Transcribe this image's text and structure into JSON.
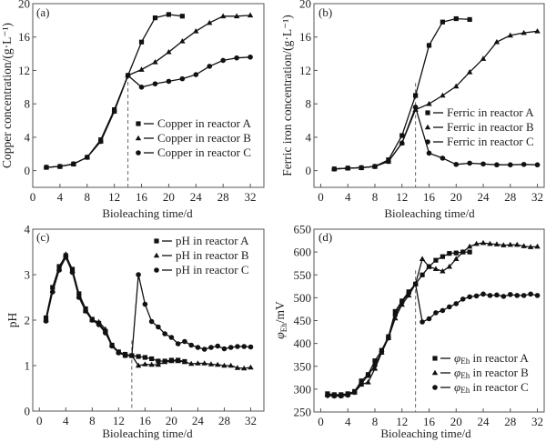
{
  "chart_data": [
    {
      "type": "line",
      "panel_label": "(a)",
      "xlabel": "Bioleaching time/d",
      "ylabel": "Copper concentration/(g·L⁻¹)",
      "xlim": [
        0,
        34
      ],
      "ylim": [
        -2,
        20
      ],
      "xticks": [
        0,
        4,
        8,
        12,
        16,
        20,
        24,
        28,
        32
      ],
      "yticks": [
        0,
        4,
        8,
        12,
        16,
        20
      ],
      "marker_line_x": 14,
      "legend_position": "lower-right",
      "series": [
        {
          "name": "Copper in reactor A",
          "marker": "square",
          "x": [
            2,
            4,
            6,
            8,
            10,
            12,
            14,
            16,
            18,
            20,
            22
          ],
          "y": [
            0.4,
            0.5,
            0.8,
            1.6,
            3.7,
            7.3,
            11.4,
            15.4,
            18.3,
            18.7,
            18.5
          ]
        },
        {
          "name": "Copper in reactor B",
          "marker": "triangle",
          "x": [
            2,
            4,
            6,
            8,
            10,
            12,
            14,
            16,
            18,
            20,
            22,
            24,
            26,
            28,
            30,
            32
          ],
          "y": [
            0.4,
            0.5,
            0.8,
            1.6,
            3.5,
            7.1,
            11.4,
            12.1,
            13.0,
            14.2,
            15.5,
            16.7,
            17.7,
            18.5,
            18.5,
            18.6
          ]
        },
        {
          "name": "Copper in reactor C",
          "marker": "circle",
          "x": [
            2,
            4,
            6,
            8,
            10,
            12,
            14,
            16,
            18,
            20,
            22,
            24,
            26,
            28,
            30,
            32
          ],
          "y": [
            0.4,
            0.5,
            0.8,
            1.6,
            3.5,
            7.1,
            11.4,
            10.0,
            10.4,
            10.7,
            11.0,
            11.5,
            12.5,
            13.2,
            13.5,
            13.6
          ]
        }
      ]
    },
    {
      "type": "line",
      "panel_label": "(b)",
      "xlabel": "Bioleaching time/d",
      "ylabel": "Ferric iron concentration/(g·L⁻¹)",
      "xlim": [
        -1,
        33
      ],
      "ylim": [
        -2,
        20
      ],
      "xticks": [
        0,
        4,
        8,
        12,
        16,
        20,
        24,
        28,
        32
      ],
      "yticks": [
        0,
        4,
        8,
        12,
        16,
        20
      ],
      "marker_line_x": 14,
      "legend_position": "right",
      "series": [
        {
          "name": "Ferric in reactor A",
          "marker": "square",
          "x": [
            2,
            4,
            6,
            8,
            10,
            12,
            14,
            16,
            18,
            20,
            22
          ],
          "y": [
            0.2,
            0.3,
            0.35,
            0.5,
            1.3,
            4.2,
            9.0,
            15.0,
            17.8,
            18.2,
            18.1
          ]
        },
        {
          "name": "Ferric in reactor B",
          "marker": "triangle",
          "x": [
            2,
            4,
            6,
            8,
            10,
            12,
            14,
            16,
            18,
            20,
            22,
            24,
            26,
            28,
            30,
            32
          ],
          "y": [
            0.2,
            0.3,
            0.35,
            0.5,
            1.1,
            3.3,
            7.3,
            8.0,
            9.0,
            10.1,
            11.8,
            13.4,
            15.4,
            16.2,
            16.5,
            16.7
          ]
        },
        {
          "name": "Ferric in reactor C",
          "marker": "circle",
          "x": [
            2,
            4,
            6,
            8,
            10,
            12,
            14,
            16,
            18,
            20,
            22,
            24,
            26,
            28,
            30,
            32
          ],
          "y": [
            0.2,
            0.3,
            0.35,
            0.5,
            1.1,
            3.3,
            7.6,
            2.1,
            1.5,
            0.75,
            0.9,
            0.8,
            0.7,
            0.7,
            0.75,
            0.7
          ]
        }
      ]
    },
    {
      "type": "line",
      "panel_label": "(c)",
      "xlabel": "Bioleaching time/d",
      "ylabel": "pH",
      "xlim": [
        -1,
        34
      ],
      "ylim": [
        0,
        4
      ],
      "xticks": [
        0,
        4,
        8,
        12,
        16,
        20,
        24,
        28,
        32
      ],
      "yticks": [
        0,
        1,
        2,
        3,
        4
      ],
      "marker_line_x": 14,
      "legend_position": "top-right",
      "series": [
        {
          "name": "pH in reactor A",
          "marker": "square",
          "x": [
            1,
            2,
            3,
            4,
            5,
            6,
            7,
            8,
            9,
            10,
            11,
            12,
            13,
            14,
            15,
            16,
            17,
            18,
            19,
            20,
            21,
            22
          ],
          "y": [
            2.05,
            2.72,
            3.18,
            3.42,
            3.12,
            2.58,
            2.25,
            2.02,
            1.93,
            1.75,
            1.45,
            1.3,
            1.25,
            1.22,
            1.2,
            1.18,
            1.15,
            1.1,
            1.1,
            1.12,
            1.12,
            1.09
          ]
        },
        {
          "name": "pH in reactor B",
          "marker": "triangle",
          "x": [
            1,
            2,
            3,
            4,
            5,
            6,
            7,
            8,
            9,
            10,
            11,
            12,
            13,
            14,
            15,
            16,
            17,
            18,
            19,
            20,
            21,
            22,
            23,
            24,
            25,
            26,
            27,
            28,
            29,
            30,
            31,
            32
          ],
          "y": [
            2.0,
            2.65,
            3.12,
            3.45,
            3.08,
            2.52,
            2.2,
            2.0,
            1.96,
            1.8,
            1.45,
            1.3,
            1.22,
            1.22,
            1.0,
            1.03,
            1.02,
            1.02,
            1.08,
            1.1,
            1.1,
            1.08,
            1.04,
            1.05,
            1.05,
            1.03,
            1.02,
            1.0,
            1.0,
            0.95,
            0.94,
            0.96
          ]
        },
        {
          "name": "pH in reactor C",
          "marker": "circle",
          "x": [
            1,
            2,
            3,
            4,
            5,
            6,
            7,
            8,
            9,
            10,
            11,
            12,
            13,
            14,
            15,
            16,
            17,
            18,
            19,
            20,
            21,
            22,
            23,
            24,
            25,
            26,
            27,
            28,
            29,
            30,
            31,
            32
          ],
          "y": [
            1.98,
            2.62,
            3.1,
            3.38,
            3.05,
            2.5,
            2.2,
            2.0,
            1.9,
            1.72,
            1.43,
            1.28,
            1.22,
            1.22,
            3.0,
            2.35,
            1.97,
            1.85,
            1.7,
            1.62,
            1.48,
            1.53,
            1.45,
            1.4,
            1.36,
            1.4,
            1.43,
            1.37,
            1.4,
            1.42,
            1.42,
            1.41
          ]
        }
      ]
    },
    {
      "type": "line",
      "panel_label": "(d)",
      "xlabel": "Bioleaching time/d",
      "ylabel": "φEh/mV",
      "ylabel_main": "φ",
      "ylabel_sub": "Eh",
      "ylabel_unit": "/mV",
      "xlim": [
        -1,
        33
      ],
      "ylim": [
        250,
        650
      ],
      "xticks": [
        0,
        4,
        8,
        12,
        16,
        20,
        24,
        28,
        32
      ],
      "yticks": [
        250,
        300,
        350,
        400,
        450,
        500,
        550,
        600,
        650
      ],
      "marker_line_x": 14,
      "legend_position": "lower-right",
      "series": [
        {
          "name": "φEh in reactor A",
          "label_main": "φ",
          "label_sub": "Eh",
          "label_rest": " in reactor A",
          "marker": "square",
          "x": [
            1,
            2,
            3,
            4,
            5,
            6,
            7,
            8,
            9,
            10,
            11,
            12,
            13,
            14,
            15,
            16,
            17,
            18,
            19,
            20,
            21,
            22
          ],
          "y": [
            290,
            288,
            288,
            290,
            295,
            318,
            332,
            362,
            385,
            415,
            470,
            493,
            513,
            530,
            550,
            568,
            582,
            590,
            597,
            598,
            600,
            600
          ]
        },
        {
          "name": "φEh in reactor B",
          "label_main": "φ",
          "label_sub": "Eh",
          "label_rest": " in reactor B",
          "marker": "triangle",
          "x": [
            1,
            2,
            3,
            4,
            5,
            6,
            7,
            8,
            9,
            10,
            11,
            12,
            13,
            14,
            15,
            16,
            17,
            18,
            19,
            20,
            21,
            22,
            23,
            24,
            25,
            26,
            27,
            28,
            29,
            30,
            31,
            32
          ],
          "y": [
            288,
            286,
            286,
            288,
            293,
            310,
            315,
            345,
            380,
            412,
            455,
            485,
            505,
            530,
            585,
            568,
            563,
            558,
            568,
            585,
            600,
            612,
            618,
            620,
            618,
            617,
            615,
            616,
            616,
            613,
            611,
            612
          ]
        },
        {
          "name": "φEh in reactor C",
          "label_main": "φ",
          "label_sub": "Eh",
          "label_rest": " in reactor C",
          "marker": "circle",
          "x": [
            1,
            2,
            3,
            4,
            5,
            6,
            7,
            8,
            9,
            10,
            11,
            12,
            13,
            14,
            15,
            16,
            17,
            18,
            19,
            20,
            21,
            22,
            23,
            24,
            25,
            26,
            27,
            28,
            29,
            30,
            31,
            32
          ],
          "y": [
            286,
            285,
            285,
            287,
            293,
            312,
            330,
            352,
            382,
            412,
            462,
            490,
            510,
            530,
            447,
            454,
            467,
            472,
            480,
            487,
            497,
            502,
            504,
            508,
            505,
            506,
            503,
            507,
            505,
            505,
            508,
            505
          ]
        }
      ]
    }
  ]
}
